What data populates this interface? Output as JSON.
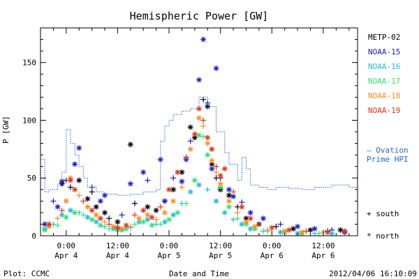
{
  "chart_data": {
    "type": "scatter",
    "title": "Hemispheric Power [GW]",
    "ylabel": "P [GW]",
    "xlabel": "Date and Time",
    "ylim": [
      0,
      180
    ],
    "xlim": [
      "2012-04-03T18:00",
      "2012-04-06T20:00"
    ],
    "yticks": [
      0,
      50,
      100,
      150
    ],
    "xticks": [
      {
        "x": "2012-04-04T00:00",
        "time": "0:00",
        "date": "Apr 4"
      },
      {
        "x": "2012-04-04T12:00",
        "time": "12:00",
        "date": "Apr 4"
      },
      {
        "x": "2012-04-05T00:00",
        "time": "0:00",
        "date": "Apr 5"
      },
      {
        "x": "2012-04-05T12:00",
        "time": "12:00",
        "date": "Apr 5"
      },
      {
        "x": "2012-04-06T00:00",
        "time": "0:00",
        "date": "Apr 6"
      },
      {
        "x": "2012-04-06T12:00",
        "time": "12:00",
        "date": "Apr 6"
      }
    ],
    "legend_position": "right",
    "series": [
      {
        "name": "METP-02",
        "color": "#000000",
        "points": [
          [
            "2012-04-03T23:00",
            45
          ],
          [
            "2012-04-04T01:00",
            42
          ],
          [
            "2012-04-04T03:00",
            48
          ],
          [
            "2012-04-04T05:00",
            32
          ],
          [
            "2012-04-04T06:00",
            38
          ],
          [
            "2012-04-04T07:00",
            25
          ],
          [
            "2012-04-04T09:00",
            20
          ],
          [
            "2012-04-04T10:00",
            15
          ],
          [
            "2012-04-04T12:00",
            12
          ],
          [
            "2012-04-04T15:00",
            79
          ],
          [
            "2012-04-04T16:00",
            28
          ],
          [
            "2012-04-04T19:00",
            25
          ],
          [
            "2012-04-04T21:00",
            22
          ],
          [
            "2012-04-04T23:00",
            30
          ],
          [
            "2012-04-05T01:00",
            40
          ],
          [
            "2012-04-05T03:00",
            55
          ],
          [
            "2012-04-05T04:00",
            68
          ],
          [
            "2012-04-05T05:00",
            94
          ],
          [
            "2012-04-05T06:00",
            85
          ],
          [
            "2012-04-05T08:00",
            118
          ],
          [
            "2012-04-05T09:00",
            112
          ],
          [
            "2012-04-05T10:00",
            62
          ],
          [
            "2012-04-05T11:00",
            50
          ],
          [
            "2012-04-05T12:00",
            40
          ],
          [
            "2012-04-05T14:00",
            35
          ],
          [
            "2012-04-05T16:00",
            25
          ],
          [
            "2012-04-05T18:00",
            15
          ],
          [
            "2012-04-05T21:00",
            10
          ],
          [
            "2012-04-06T01:00",
            8
          ],
          [
            "2012-04-06T05:00",
            6
          ],
          [
            "2012-04-06T09:00",
            5
          ],
          [
            "2012-04-06T13:00",
            4
          ],
          [
            "2012-04-06T16:00",
            5
          ]
        ]
      },
      {
        "name": "NOAA-15",
        "color": "#1a1acc",
        "points": [
          [
            "2012-04-03T19:00",
            10
          ],
          [
            "2012-04-03T21:00",
            30
          ],
          [
            "2012-04-03T22:00",
            25
          ],
          [
            "2012-04-03T23:00",
            47
          ],
          [
            "2012-04-04T00:00",
            48
          ],
          [
            "2012-04-04T02:00",
            62
          ],
          [
            "2012-04-04T03:00",
            76
          ],
          [
            "2012-04-04T06:00",
            42
          ],
          [
            "2012-04-04T08:00",
            30
          ],
          [
            "2012-04-04T09:00",
            35
          ],
          [
            "2012-04-04T13:00",
            18
          ],
          [
            "2012-04-04T15:00",
            45
          ],
          [
            "2012-04-04T18:00",
            55
          ],
          [
            "2012-04-04T19:00",
            48
          ],
          [
            "2012-04-04T22:00",
            66
          ],
          [
            "2012-04-04T23:00",
            30
          ],
          [
            "2012-04-05T01:00",
            50
          ],
          [
            "2012-04-05T03:00",
            47
          ],
          [
            "2012-04-05T04:00",
            66
          ],
          [
            "2012-04-05T05:00",
            82
          ],
          [
            "2012-04-05T07:00",
            135
          ],
          [
            "2012-04-05T08:00",
            170
          ],
          [
            "2012-04-05T09:00",
            115
          ],
          [
            "2012-04-05T10:00",
            58
          ],
          [
            "2012-04-05T11:00",
            145
          ],
          [
            "2012-04-05T12:00",
            50
          ],
          [
            "2012-04-05T14:00",
            40
          ],
          [
            "2012-04-05T15:00",
            34
          ],
          [
            "2012-04-05T17:00",
            29
          ],
          [
            "2012-04-05T19:00",
            20
          ],
          [
            "2012-04-05T22:00",
            15
          ],
          [
            "2012-04-06T02:00",
            10
          ],
          [
            "2012-04-06T06:00",
            8
          ],
          [
            "2012-04-06T10:00",
            6
          ],
          [
            "2012-04-06T14:00",
            5
          ],
          [
            "2012-04-06T17:00",
            3
          ]
        ]
      },
      {
        "name": "NOAA-16",
        "color": "#22bcd4",
        "points": [
          [
            "2012-04-03T19:00",
            6
          ],
          [
            "2012-04-03T21:00",
            10
          ],
          [
            "2012-04-03T23:00",
            18
          ],
          [
            "2012-04-04T01:00",
            22
          ],
          [
            "2012-04-04T03:00",
            20
          ],
          [
            "2012-04-04T05:00",
            16
          ],
          [
            "2012-04-04T07:00",
            12
          ],
          [
            "2012-04-04T09:00",
            8
          ],
          [
            "2012-04-04T11:00",
            6
          ],
          [
            "2012-04-04T13:00",
            5
          ],
          [
            "2012-04-04T15:00",
            7
          ],
          [
            "2012-04-04T17:00",
            12
          ],
          [
            "2012-04-04T19:00",
            14
          ],
          [
            "2012-04-04T21:00",
            10
          ],
          [
            "2012-04-04T23:00",
            12
          ],
          [
            "2012-04-05T01:00",
            18
          ],
          [
            "2012-04-05T03:00",
            28
          ],
          [
            "2012-04-05T05:00",
            38
          ],
          [
            "2012-04-05T07:00",
            44
          ],
          [
            "2012-04-05T09:00",
            40
          ],
          [
            "2012-04-05T11:00",
            30
          ],
          [
            "2012-04-05T13:00",
            20
          ],
          [
            "2012-04-05T15:00",
            14
          ],
          [
            "2012-04-05T17:00",
            10
          ],
          [
            "2012-04-05T19:00",
            6
          ],
          [
            "2012-04-05T22:00",
            4
          ],
          [
            "2012-04-06T02:00",
            3
          ],
          [
            "2012-04-06T06:00",
            2
          ],
          [
            "2012-04-06T10:00",
            2
          ],
          [
            "2012-04-06T14:00",
            2
          ]
        ]
      },
      {
        "name": "NOAA-17",
        "color": "#33e070",
        "points": [
          [
            "2012-04-03T19:00",
            5
          ],
          [
            "2012-04-03T22:00",
            9
          ],
          [
            "2012-04-04T00:00",
            16
          ],
          [
            "2012-04-04T02:00",
            20
          ],
          [
            "2012-04-04T04:00",
            18
          ],
          [
            "2012-04-04T06:00",
            14
          ],
          [
            "2012-04-04T08:00",
            9
          ],
          [
            "2012-04-04T10:00",
            6
          ],
          [
            "2012-04-04T12:00",
            5
          ],
          [
            "2012-04-04T14:00",
            6
          ],
          [
            "2012-04-04T16:00",
            10
          ],
          [
            "2012-04-04T18:00",
            12
          ],
          [
            "2012-04-04T20:00",
            9
          ],
          [
            "2012-04-04T22:00",
            10
          ],
          [
            "2012-04-05T00:00",
            14
          ],
          [
            "2012-04-05T02:00",
            20
          ],
          [
            "2012-04-05T04:00",
            28
          ],
          [
            "2012-04-05T06:00",
            48
          ],
          [
            "2012-04-05T07:00",
            87
          ],
          [
            "2012-04-05T08:00",
            86
          ],
          [
            "2012-04-05T09:00",
            70
          ],
          [
            "2012-04-05T10:00",
            75
          ],
          [
            "2012-04-05T11:00",
            60
          ],
          [
            "2012-04-05T12:00",
            42
          ],
          [
            "2012-04-05T14:00",
            25
          ],
          [
            "2012-04-05T16:00",
            15
          ],
          [
            "2012-04-05T18:00",
            10
          ],
          [
            "2012-04-05T20:00",
            6
          ],
          [
            "2012-04-05T23:00",
            4
          ],
          [
            "2012-04-06T03:00",
            3
          ],
          [
            "2012-04-06T07:00",
            2
          ],
          [
            "2012-04-06T11:00",
            2
          ]
        ]
      },
      {
        "name": "NOAA-18",
        "color": "#ff8c1a",
        "points": [
          [
            "2012-04-03T20:00",
            8
          ],
          [
            "2012-04-03T22:00",
            15
          ],
          [
            "2012-04-04T00:00",
            30
          ],
          [
            "2012-04-04T01:00",
            50
          ],
          [
            "2012-04-04T03:00",
            35
          ],
          [
            "2012-04-04T05:00",
            25
          ],
          [
            "2012-04-04T07:00",
            18
          ],
          [
            "2012-04-04T09:00",
            12
          ],
          [
            "2012-04-04T11:00",
            8
          ],
          [
            "2012-04-04T13:00",
            6
          ],
          [
            "2012-04-04T15:00",
            8
          ],
          [
            "2012-04-04T17:00",
            15
          ],
          [
            "2012-04-04T19:00",
            18
          ],
          [
            "2012-04-04T21:00",
            14
          ],
          [
            "2012-04-04T23:00",
            20
          ],
          [
            "2012-04-05T01:00",
            30
          ],
          [
            "2012-04-05T03:00",
            42
          ],
          [
            "2012-04-05T05:00",
            75
          ],
          [
            "2012-04-05T07:00",
            102
          ],
          [
            "2012-04-05T08:00",
            95
          ],
          [
            "2012-04-05T09:00",
            80
          ],
          [
            "2012-04-05T10:00",
            65
          ],
          [
            "2012-04-05T11:00",
            55
          ],
          [
            "2012-04-05T12:00",
            45
          ],
          [
            "2012-04-05T14:00",
            30
          ],
          [
            "2012-04-05T16:00",
            20
          ],
          [
            "2012-04-05T18:00",
            12
          ],
          [
            "2012-04-05T20:00",
            8
          ],
          [
            "2012-04-05T23:00",
            5
          ],
          [
            "2012-04-06T03:00",
            4
          ],
          [
            "2012-04-06T07:00",
            3
          ],
          [
            "2012-04-06T12:00",
            3
          ]
        ]
      },
      {
        "name": "NOAA-19",
        "color": "#e0331a",
        "points": [
          [
            "2012-04-03T20:00",
            10
          ],
          [
            "2012-04-03T23:00",
            22
          ],
          [
            "2012-04-04T01:00",
            48
          ],
          [
            "2012-04-04T02:00",
            40
          ],
          [
            "2012-04-04T04:00",
            30
          ],
          [
            "2012-04-04T06:00",
            22
          ],
          [
            "2012-04-04T08:00",
            15
          ],
          [
            "2012-04-04T10:00",
            10
          ],
          [
            "2012-04-04T12:00",
            7
          ],
          [
            "2012-04-04T14:00",
            9
          ],
          [
            "2012-04-04T16:00",
            18
          ],
          [
            "2012-04-04T18:00",
            22
          ],
          [
            "2012-04-04T20:00",
            16
          ],
          [
            "2012-04-04T22:00",
            25
          ],
          [
            "2012-04-05T00:00",
            40
          ],
          [
            "2012-04-05T02:00",
            55
          ],
          [
            "2012-04-05T04:00",
            68
          ],
          [
            "2012-04-05T06:00",
            88
          ],
          [
            "2012-04-05T07:00",
            110
          ],
          [
            "2012-04-05T08:00",
            100
          ],
          [
            "2012-04-05T09:00",
            85
          ],
          [
            "2012-04-05T10:00",
            75
          ],
          [
            "2012-04-05T11:00",
            60
          ],
          [
            "2012-04-05T12:00",
            52
          ],
          [
            "2012-04-05T13:00",
            58
          ],
          [
            "2012-04-05T15:00",
            38
          ],
          [
            "2012-04-05T17:00",
            25
          ],
          [
            "2012-04-05T19:00",
            15
          ],
          [
            "2012-04-05T21:00",
            10
          ],
          [
            "2012-04-06T00:00",
            7
          ],
          [
            "2012-04-06T04:00",
            5
          ],
          [
            "2012-04-06T08:00",
            4
          ],
          [
            "2012-04-06T13:00",
            3
          ],
          [
            "2012-04-06T17:00",
            4
          ]
        ]
      },
      {
        "name": "Ovation Prime HPI",
        "color": "#2266cc",
        "style": "dotted-step",
        "points": [
          [
            "2012-04-03T18:00",
            66
          ],
          [
            "2012-04-03T19:00",
            38
          ],
          [
            "2012-04-03T20:00",
            40
          ],
          [
            "2012-04-03T22:00",
            45
          ],
          [
            "2012-04-03T23:00",
            55
          ],
          [
            "2012-04-04T00:00",
            92
          ],
          [
            "2012-04-04T01:00",
            80
          ],
          [
            "2012-04-04T02:00",
            70
          ],
          [
            "2012-04-04T03:00",
            60
          ],
          [
            "2012-04-04T04:00",
            50
          ],
          [
            "2012-04-04T05:00",
            42
          ],
          [
            "2012-04-04T07:00",
            38
          ],
          [
            "2012-04-04T09:00",
            36
          ],
          [
            "2012-04-04T12:00",
            35
          ],
          [
            "2012-04-04T15:00",
            36
          ],
          [
            "2012-04-04T18:00",
            38
          ],
          [
            "2012-04-04T21:00",
            40
          ],
          [
            "2012-04-04T22:00",
            82
          ],
          [
            "2012-04-04T23:00",
            95
          ],
          [
            "2012-04-05T00:00",
            100
          ],
          [
            "2012-04-05T01:00",
            105
          ],
          [
            "2012-04-05T03:00",
            108
          ],
          [
            "2012-04-05T05:00",
            110
          ],
          [
            "2012-04-05T07:00",
            120
          ],
          [
            "2012-04-05T09:00",
            112
          ],
          [
            "2012-04-05T11:00",
            90
          ],
          [
            "2012-04-05T13:00",
            72
          ],
          [
            "2012-04-05T14:00",
            62
          ],
          [
            "2012-04-05T16:00",
            48
          ],
          [
            "2012-04-05T17:00",
            68
          ],
          [
            "2012-04-05T18:00",
            58
          ],
          [
            "2012-04-05T19:00",
            44
          ],
          [
            "2012-04-05T21:00",
            42
          ],
          [
            "2012-04-05T23:00",
            40
          ],
          [
            "2012-04-06T01:00",
            42
          ],
          [
            "2012-04-06T04:00",
            41
          ],
          [
            "2012-04-06T07:00",
            40
          ],
          [
            "2012-04-06T10:00",
            42
          ],
          [
            "2012-04-06T14:00",
            44
          ],
          [
            "2012-04-06T18:00",
            42
          ],
          [
            "2012-04-06T20:00",
            38
          ]
        ]
      }
    ],
    "legend": {
      "satellites": [
        "METP-02",
        "NOAA-15",
        "NOAA-16",
        "NOAA-17",
        "NOAA-18",
        "NOAA-19"
      ],
      "model_line1": "– Ovation",
      "model_line2": "Prime HPI",
      "south": "+ south",
      "north": "* north"
    }
  },
  "footer": {
    "plot": "Plot: CCMC",
    "timestamp": "2012/04/06 16:10:09"
  }
}
